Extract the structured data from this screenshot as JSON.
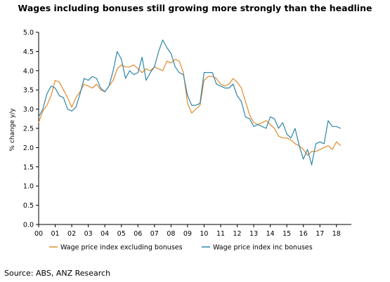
{
  "chart_data": {
    "type": "line",
    "title": "Wages including bonuses still growing more strongly than the headline",
    "ylabel": "% change y/y",
    "xlabel": "",
    "ylim": [
      0.0,
      5.0
    ],
    "xlim": [
      0,
      18.9
    ],
    "y_ticks": [
      "0.0",
      "0.5",
      "1.0",
      "1.5",
      "2.0",
      "2.5",
      "3.0",
      "3.5",
      "4.0",
      "4.5",
      "5.0"
    ],
    "x_ticks": [
      "00",
      "01",
      "02",
      "03",
      "04",
      "05",
      "06",
      "07",
      "08",
      "09",
      "10",
      "11",
      "12",
      "13",
      "14",
      "15",
      "16",
      "17",
      "18"
    ],
    "legend_position": "bottom",
    "grid": false,
    "series": [
      {
        "name": "Wage price index excluding bonuses",
        "color": "#E08A2C",
        "x": [
          0,
          0.25,
          0.5,
          0.75,
          1,
          1.25,
          1.5,
          1.75,
          2,
          2.25,
          2.5,
          2.75,
          3,
          3.25,
          3.5,
          3.75,
          4,
          4.25,
          4.5,
          4.75,
          5,
          5.25,
          5.5,
          5.75,
          6,
          6.25,
          6.5,
          6.75,
          7,
          7.25,
          7.5,
          7.75,
          8,
          8.25,
          8.5,
          8.75,
          9,
          9.25,
          9.5,
          9.75,
          10,
          10.25,
          10.5,
          10.75,
          11,
          11.25,
          11.5,
          11.75,
          12,
          12.25,
          12.5,
          12.75,
          13,
          13.25,
          13.5,
          13.75,
          14,
          14.25,
          14.5,
          14.75,
          15,
          15.25,
          15.5,
          15.75,
          16,
          16.25,
          16.5,
          16.75,
          17,
          17.25,
          17.5,
          17.75,
          18,
          18.25
        ],
        "values": [
          2.65,
          2.95,
          3.1,
          3.35,
          3.75,
          3.7,
          3.5,
          3.3,
          3.05,
          3.3,
          3.45,
          3.65,
          3.6,
          3.55,
          3.65,
          3.5,
          3.45,
          3.6,
          3.75,
          4.05,
          4.15,
          4.1,
          4.1,
          4.15,
          4.05,
          3.95,
          4.05,
          4.0,
          4.1,
          4.05,
          4.0,
          4.25,
          4.2,
          4.3,
          4.25,
          3.95,
          3.15,
          2.9,
          3.0,
          3.1,
          3.75,
          3.85,
          3.85,
          3.8,
          3.65,
          3.6,
          3.65,
          3.8,
          3.7,
          3.55,
          3.2,
          2.85,
          2.65,
          2.6,
          2.65,
          2.7,
          2.6,
          2.5,
          2.3,
          2.25,
          2.25,
          2.2,
          2.1,
          2.05,
          1.95,
          1.8,
          1.9,
          1.9,
          1.95,
          2.0,
          2.05,
          1.95,
          2.15,
          2.05
        ]
      },
      {
        "name": "Wage price index inc bonuses",
        "color": "#2E86AB",
        "x": [
          0,
          0.25,
          0.5,
          0.75,
          1,
          1.25,
          1.5,
          1.75,
          2,
          2.25,
          2.5,
          2.75,
          3,
          3.25,
          3.5,
          3.75,
          4,
          4.25,
          4.5,
          4.75,
          5,
          5.25,
          5.5,
          5.75,
          6,
          6.25,
          6.5,
          6.75,
          7,
          7.25,
          7.5,
          7.75,
          8,
          8.25,
          8.5,
          8.75,
          9,
          9.25,
          9.5,
          9.75,
          10,
          10.25,
          10.5,
          10.75,
          11,
          11.25,
          11.5,
          11.75,
          12,
          12.25,
          12.5,
          12.75,
          13,
          13.25,
          13.5,
          13.75,
          14,
          14.25,
          14.5,
          14.75,
          15,
          15.25,
          15.5,
          15.75,
          16,
          16.25,
          16.5,
          16.75,
          17,
          17.25,
          17.5,
          17.75,
          18,
          18.25
        ],
        "values": [
          2.8,
          3.0,
          3.4,
          3.6,
          3.55,
          3.35,
          3.3,
          3.0,
          2.95,
          3.05,
          3.4,
          3.8,
          3.75,
          3.85,
          3.8,
          3.55,
          3.45,
          3.6,
          4.0,
          4.5,
          4.3,
          3.8,
          4.0,
          3.9,
          3.95,
          4.35,
          3.75,
          3.95,
          4.1,
          4.5,
          4.8,
          4.6,
          4.45,
          4.1,
          3.95,
          3.9,
          3.35,
          3.1,
          3.1,
          3.15,
          3.95,
          3.95,
          3.95,
          3.65,
          3.6,
          3.55,
          3.55,
          3.65,
          3.35,
          3.2,
          2.8,
          2.75,
          2.55,
          2.6,
          2.55,
          2.5,
          2.8,
          2.75,
          2.5,
          2.65,
          2.35,
          2.25,
          2.5,
          2.05,
          1.7,
          1.95,
          1.55,
          2.1,
          2.15,
          2.1,
          2.7,
          2.55,
          2.55,
          2.5
        ]
      }
    ]
  },
  "source": "Source: ABS, ANZ Research"
}
